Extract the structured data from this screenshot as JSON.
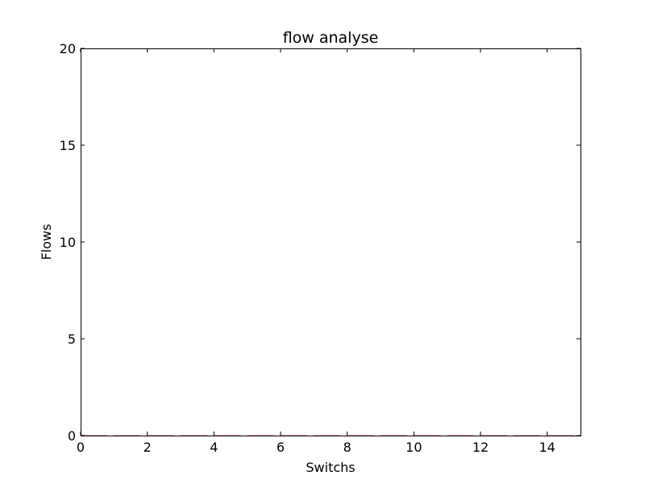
{
  "chart_data": {
    "type": "bar",
    "title": "flow analyse",
    "xlabel": "Switchs",
    "ylabel": "Flows",
    "xlim": [
      0,
      15
    ],
    "ylim": [
      0,
      20
    ],
    "xticks": [
      0,
      2,
      4,
      6,
      8,
      10,
      12,
      14
    ],
    "xtick_labels": [
      "0",
      "2",
      "4",
      "6",
      "8",
      "10",
      "12",
      "14"
    ],
    "yticks": [
      0,
      5,
      10,
      15,
      20
    ],
    "ytick_labels": [
      "0",
      "5",
      "10",
      "15",
      "20"
    ],
    "categories": [
      0,
      1,
      2,
      3,
      4,
      5,
      6,
      7,
      8,
      9,
      10,
      11,
      12,
      13,
      14
    ],
    "values": [
      0,
      0,
      0,
      0,
      0,
      0,
      0,
      0,
      0,
      0,
      0,
      0,
      0,
      0,
      0
    ],
    "grid": false,
    "colors": {
      "bar": "#cc0000",
      "axis": "#000000",
      "background": "#ffffff"
    }
  }
}
